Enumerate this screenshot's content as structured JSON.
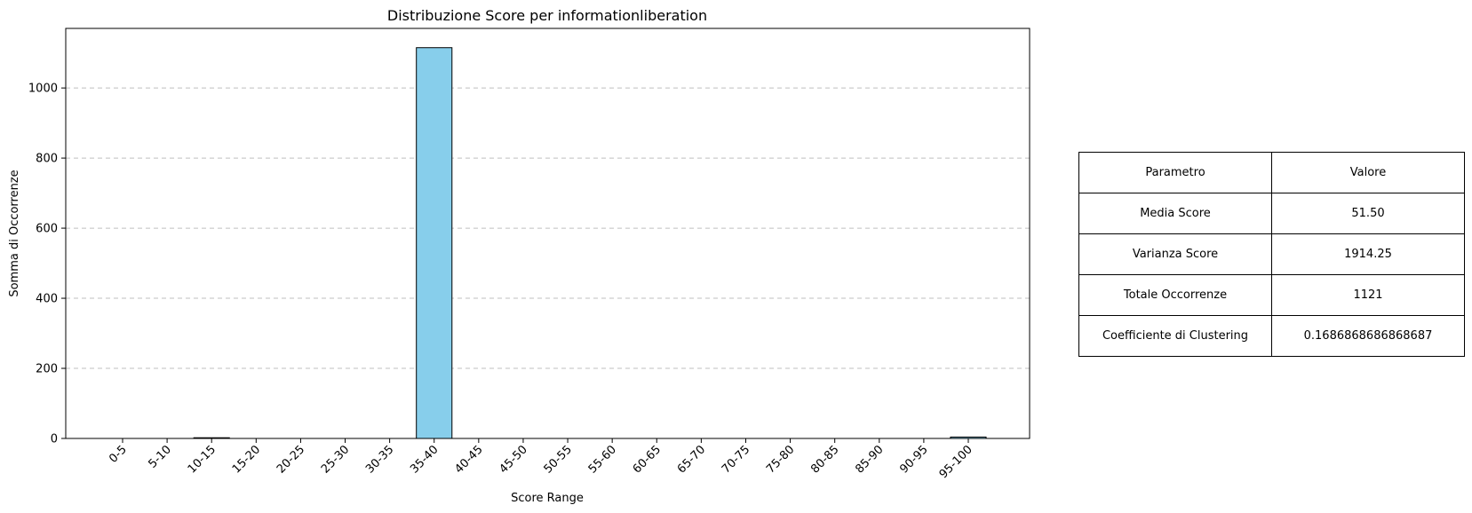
{
  "chart_data": {
    "type": "bar",
    "title": "Distribuzione Score per informationliberation",
    "xlabel": "Score Range",
    "ylabel": "Somma di Occorrenze",
    "categories": [
      "0-5",
      "5-10",
      "10-15",
      "15-20",
      "20-25",
      "25-30",
      "30-35",
      "35-40",
      "40-45",
      "45-50",
      "50-55",
      "55-60",
      "60-65",
      "65-70",
      "70-75",
      "75-80",
      "80-85",
      "85-90",
      "90-95",
      "95-100"
    ],
    "values": [
      0,
      0,
      2,
      0,
      0,
      0,
      0,
      1115,
      0,
      0,
      0,
      0,
      0,
      0,
      0,
      0,
      0,
      0,
      0,
      4
    ],
    "ylim": [
      0,
      1170
    ],
    "yticks": [
      0,
      200,
      400,
      600,
      800,
      1000
    ],
    "grid": "y-dashed",
    "bar_color": "#87CEEB",
    "edge_color": "#000000"
  },
  "table": {
    "headers": [
      "Parametro",
      "Valore"
    ],
    "rows": [
      [
        "Media Score",
        "51.50"
      ],
      [
        "Varianza Score",
        "1914.25"
      ],
      [
        "Totale Occorrenze",
        "1121"
      ],
      [
        "Coefficiente di Clustering",
        "0.1686868686868687"
      ]
    ]
  }
}
